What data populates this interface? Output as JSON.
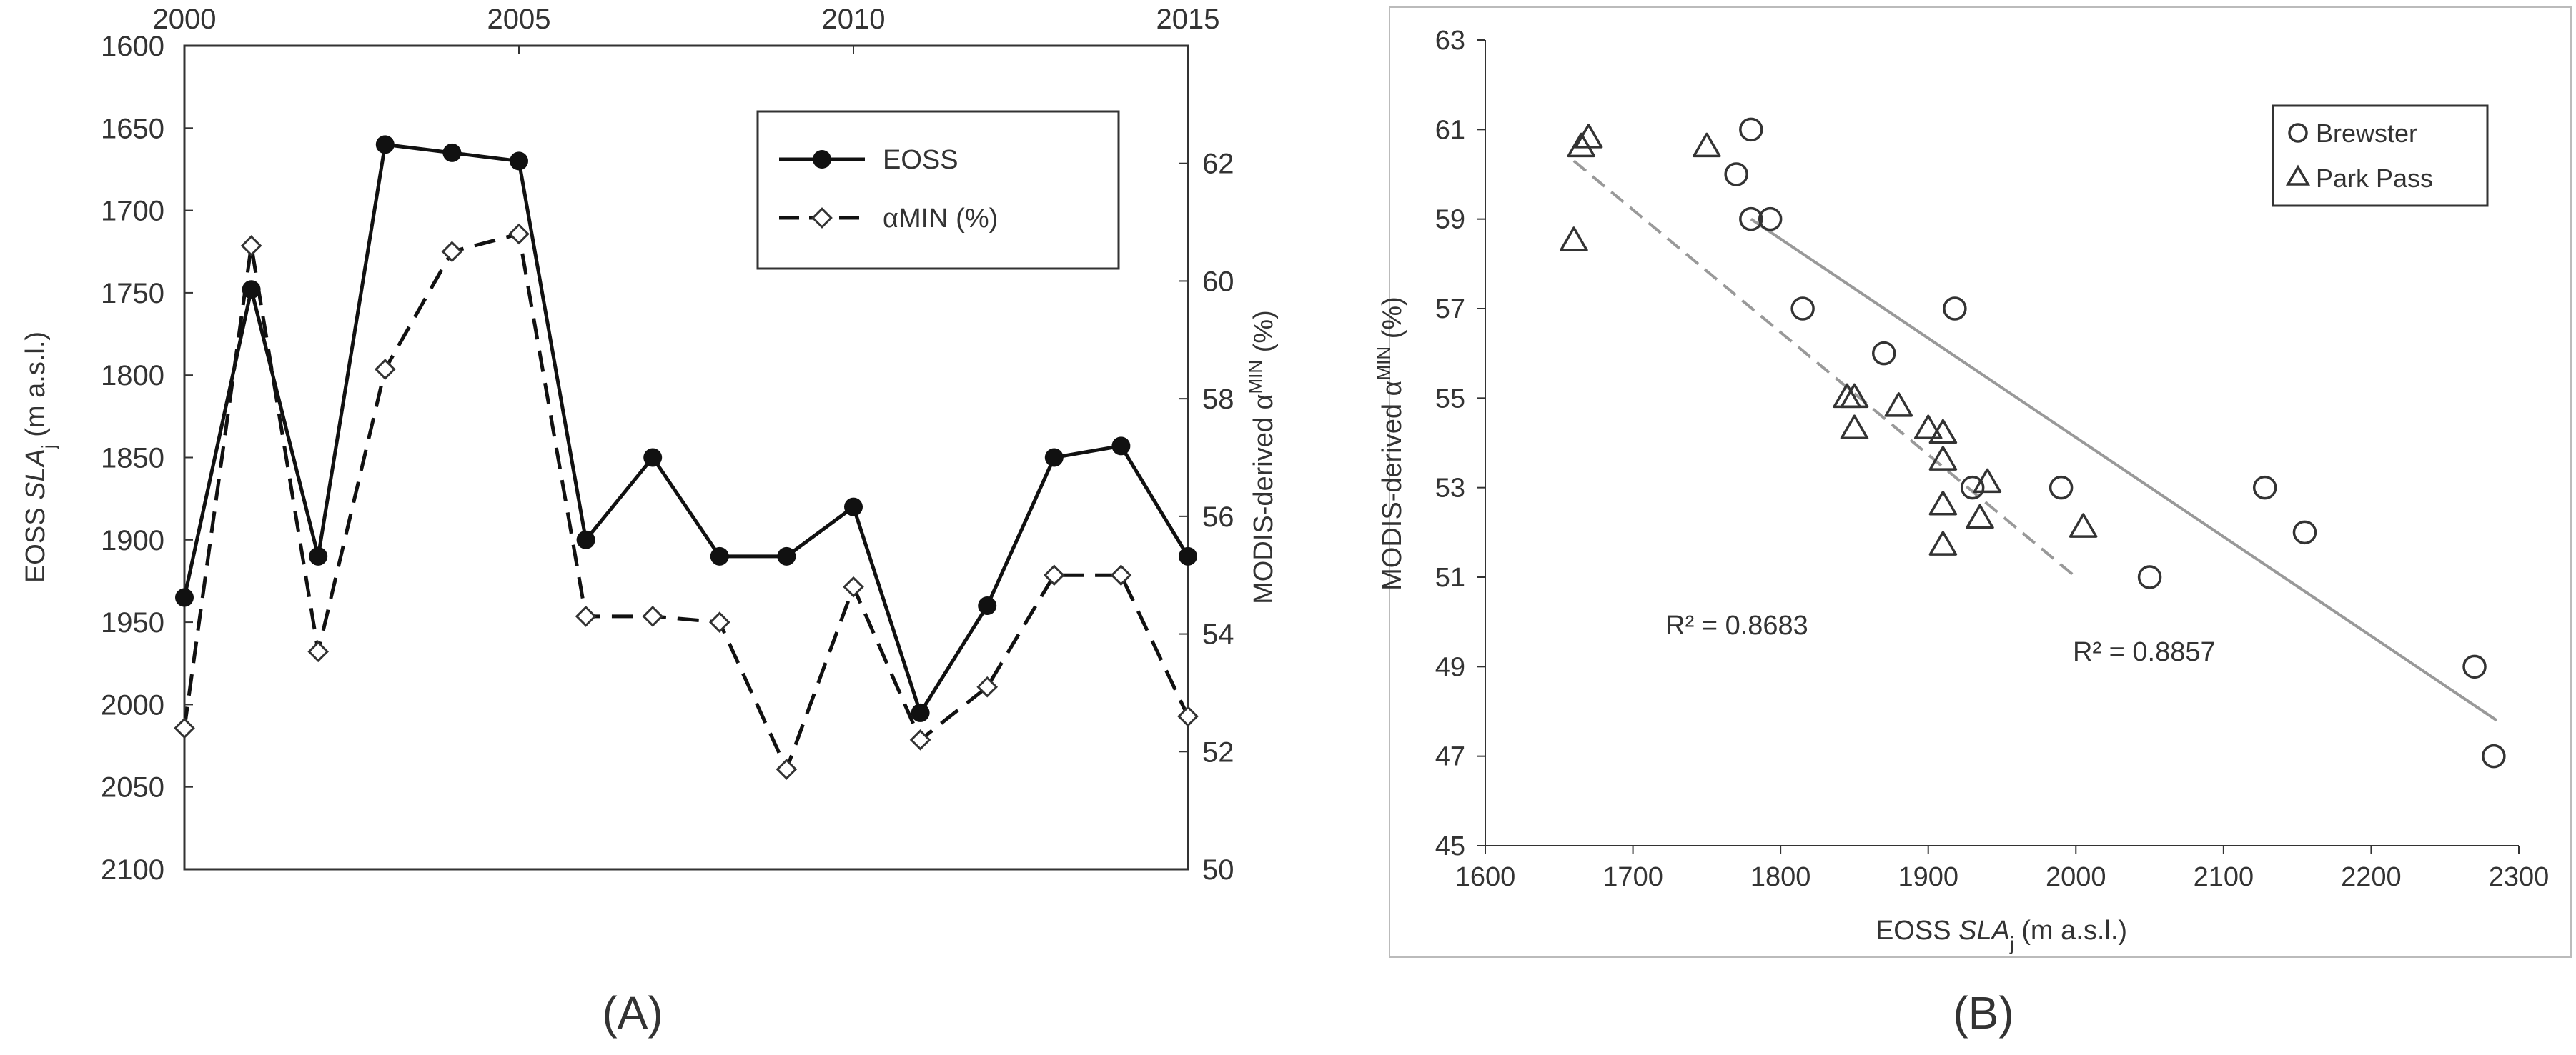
{
  "chart_data": [
    {
      "type": "line",
      "panel_label": "(A)",
      "x": [
        2000,
        2001,
        2002,
        2003,
        2004,
        2005,
        2006,
        2007,
        2008,
        2009,
        2010,
        2011,
        2012,
        2013,
        2014,
        2015
      ],
      "x_ticks": [
        "2000",
        "2005",
        "2010",
        "2015"
      ],
      "xlim": [
        2000,
        2015
      ],
      "left_axis": {
        "label_pre": "EOSS ",
        "label_var": "SLA",
        "label_sub": "j",
        "label_post": " (m a.s.l.)",
        "lim": [
          1600,
          2100
        ],
        "inverted": true,
        "ticks": [
          "1600",
          "1650",
          "1700",
          "1750",
          "1800",
          "1850",
          "1900",
          "1950",
          "2000",
          "2050",
          "2100"
        ]
      },
      "right_axis": {
        "label_pre": "MODIS-derived α",
        "label_sup": "MIN",
        "label_post": " (%)",
        "lim": [
          50,
          64
        ],
        "ticks": [
          "50",
          "52",
          "54",
          "56",
          "58",
          "60",
          "62"
        ]
      },
      "series": [
        {
          "name": "EOSS",
          "axis": "left",
          "style": "solid",
          "marker": "filled-circle",
          "values": [
            1935,
            1748,
            1910,
            1660,
            1665,
            1670,
            1900,
            1850,
            1910,
            1910,
            1880,
            2005,
            1940,
            1850,
            1843,
            1910
          ]
        },
        {
          "name": "αMIN (%)",
          "axis": "right",
          "style": "dashed",
          "marker": "open-diamond",
          "values": [
            52.4,
            60.6,
            53.7,
            58.5,
            60.5,
            60.8,
            54.3,
            54.3,
            54.2,
            51.7,
            54.8,
            52.2,
            53.1,
            55.0,
            55.0,
            52.6
          ]
        }
      ],
      "legend": "top-right",
      "grid": false
    },
    {
      "type": "scatter",
      "panel_label": "(B)",
      "xlabel": {
        "pre": "EOSS ",
        "var": "SLA",
        "sub": "j",
        "post": " (m a.s.l.)"
      },
      "ylabel": {
        "pre": "MODIS-derived α",
        "sup": "MIN",
        "post": " (%)"
      },
      "xlim": [
        1600,
        2300
      ],
      "ylim": [
        45,
        63
      ],
      "x_ticks": [
        "1600",
        "1700",
        "1800",
        "1900",
        "2000",
        "2100",
        "2200",
        "2300"
      ],
      "y_ticks": [
        "45",
        "47",
        "49",
        "51",
        "53",
        "55",
        "57",
        "59",
        "61",
        "63"
      ],
      "series": [
        {
          "name": "Brewster",
          "marker": "open-circle",
          "points": [
            [
              1780,
              61
            ],
            [
              1770,
              60
            ],
            [
              1780,
              59
            ],
            [
              1793,
              59
            ],
            [
              1815,
              57
            ],
            [
              1918,
              57
            ],
            [
              1870,
              56
            ],
            [
              1990,
              53
            ],
            [
              1930,
              53
            ],
            [
              2050,
              51
            ],
            [
              2128,
              53
            ],
            [
              2155,
              52
            ],
            [
              2270,
              49
            ],
            [
              2283,
              47
            ]
          ],
          "trendline": {
            "style": "solid",
            "x": [
              1780,
              2285
            ],
            "y": [
              59.0,
              47.8
            ],
            "r2_label": "R² = 0.8857"
          }
        },
        {
          "name": "Park Pass",
          "marker": "open-triangle",
          "points": [
            [
              1660,
              58.5
            ],
            [
              1665,
              60.6
            ],
            [
              1670,
              60.8
            ],
            [
              1750,
              60.6
            ],
            [
              1845,
              55.0
            ],
            [
              1850,
              55.0
            ],
            [
              1850,
              54.3
            ],
            [
              1880,
              54.8
            ],
            [
              1900,
              54.3
            ],
            [
              1910,
              54.2
            ],
            [
              1910,
              53.6
            ],
            [
              1910,
              52.6
            ],
            [
              1910,
              51.7
            ],
            [
              1935,
              52.3
            ],
            [
              1940,
              53.1
            ],
            [
              2005,
              52.1
            ]
          ],
          "trendline": {
            "style": "dashed",
            "x": [
              1660,
              2000
            ],
            "y": [
              60.3,
              51.0
            ],
            "r2_label": "R² = 0.8683"
          }
        }
      ],
      "legend": "top-right",
      "grid": false
    }
  ]
}
